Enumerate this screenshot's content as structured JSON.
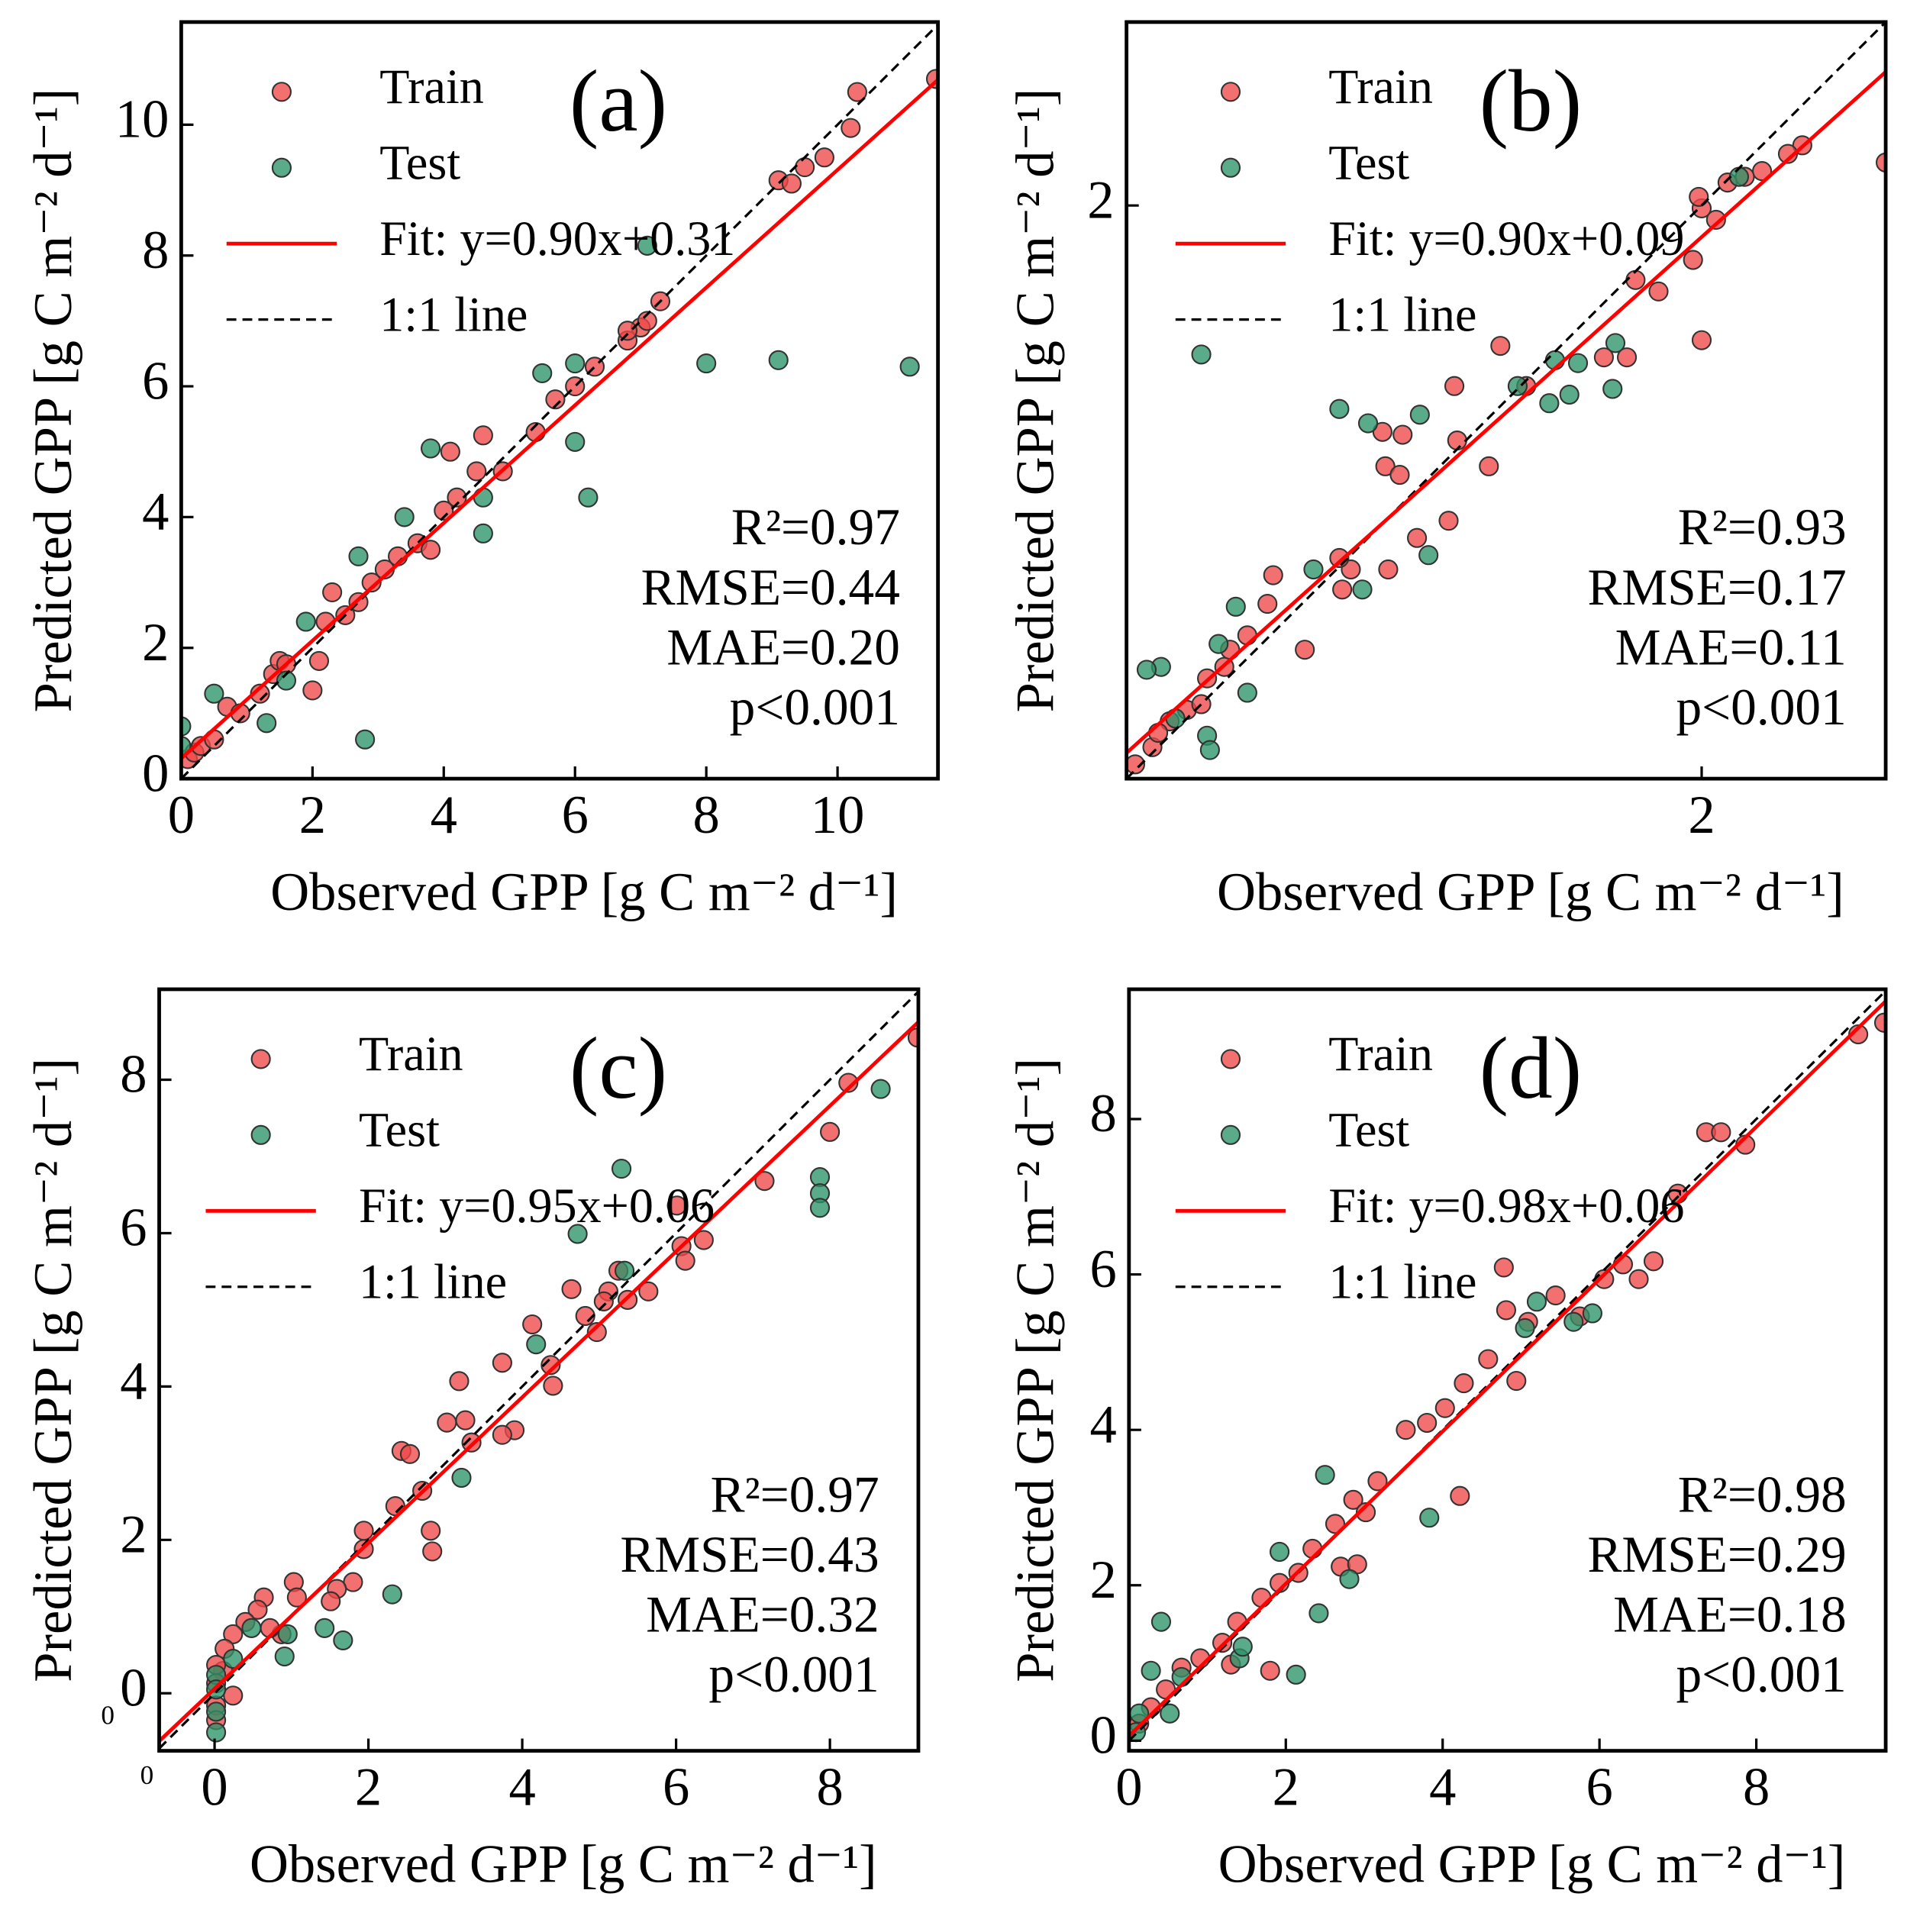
{
  "chart_data": [
    {
      "type": "scatter",
      "panel_label": "(a)",
      "xlabel": "Observed GPP [g C m⁻² d⁻¹]",
      "ylabel": "Predicted GPP [g C m⁻² d⁻¹]",
      "xlim": [
        0,
        11.53
      ],
      "ylim": [
        0,
        11.57
      ],
      "xticks": [
        0,
        2,
        4,
        6,
        8,
        10
      ],
      "yticks": [
        0,
        2,
        4,
        6,
        8,
        10
      ],
      "series": [
        {
          "name": "Train",
          "color": "#f04848",
          "x": [
            0.1,
            0.2,
            0.3,
            0.5,
            0.7,
            0.9,
            1.2,
            1.4,
            1.5,
            1.6,
            2.0,
            2.1,
            2.2,
            2.3,
            2.5,
            2.7,
            2.9,
            3.1,
            3.3,
            3.6,
            3.8,
            4.0,
            4.2,
            4.1,
            4.5,
            4.6,
            4.9,
            5.4,
            5.7,
            6.0,
            6.3,
            6.8,
            7.0,
            7.3,
            7.1,
            6.8,
            9.1,
            9.3,
            9.5,
            9.8,
            10.2,
            10.3,
            11.5
          ],
          "y": [
            0.3,
            0.4,
            0.5,
            0.6,
            1.1,
            1.0,
            1.3,
            1.6,
            1.8,
            1.75,
            1.35,
            1.8,
            2.4,
            2.85,
            2.5,
            2.7,
            3.0,
            3.2,
            3.4,
            3.6,
            3.5,
            4.1,
            4.3,
            5.0,
            4.7,
            5.25,
            4.7,
            5.3,
            5.8,
            6.0,
            6.3,
            6.7,
            6.9,
            7.3,
            7.0,
            6.85,
            9.15,
            9.1,
            9.35,
            9.5,
            9.95,
            10.5,
            10.7
          ]
        },
        {
          "name": "Test",
          "color": "#2a9468",
          "x": [
            8.0,
            9.1,
            11.1,
            6.0,
            5.5,
            6.2,
            6.0,
            2.8,
            3.8,
            4.6,
            3.4,
            1.6,
            0.5,
            0.0,
            2.7,
            4.6,
            1.3,
            0.0,
            7.1,
            1.9
          ],
          "y": [
            6.35,
            6.4,
            6.3,
            6.35,
            6.2,
            4.3,
            5.15,
            0.6,
            5.05,
            3.75,
            4.0,
            1.5,
            1.3,
            0.8,
            3.4,
            4.3,
            0.85,
            0.5,
            8.15,
            2.4
          ]
        }
      ],
      "fit": {
        "name": "Fit: y=0.90x+0.31",
        "slope": 0.9,
        "intercept": 0.31,
        "color": "#ff0000"
      },
      "identity": {
        "name": "1:1 line",
        "slope": 1,
        "intercept": 0,
        "color": "#000000"
      },
      "stats": [
        "R²=0.97",
        "RMSE=0.44",
        "MAE=0.20",
        "p<0.001"
      ]
    },
    {
      "type": "scatter",
      "panel_label": "(b)",
      "xlabel": "Observed GPP [g C m⁻² d⁻¹]",
      "ylabel": "Predicted GPP [g C m⁻² d⁻¹]",
      "xlim": [
        0,
        2.64
      ],
      "ylim": [
        0,
        2.64
      ],
      "xticks": [
        2
      ],
      "yticks": [
        2
      ],
      "series": [
        {
          "name": "Train",
          "color": "#f04848",
          "x": [
            2.0,
            1.99,
            2.64,
            2.35,
            2.3,
            2.21,
            2.15,
            2.09,
            2.05,
            1.97,
            2.0,
            1.85,
            1.77,
            1.66,
            1.74,
            1.3,
            1.14,
            1.15,
            1.26,
            1.39,
            0.89,
            0.96,
            0.9,
            0.95,
            1.01,
            1.12,
            0.91,
            0.78,
            0.74,
            0.75,
            0.51,
            0.49,
            0.62,
            0.42,
            0.34,
            0.28,
            0.21,
            0.15,
            0.09,
            0.03,
            0.26,
            0.36,
            0.11
          ],
          "y": [
            1.99,
            2.03,
            2.15,
            2.21,
            2.18,
            2.12,
            2.1,
            2.08,
            1.95,
            1.81,
            1.53,
            1.7,
            1.74,
            1.47,
            1.47,
            1.51,
            1.37,
            1.18,
            1.09,
            1.37,
            1.21,
            1.2,
            1.09,
            1.06,
            0.84,
            0.9,
            0.73,
            0.73,
            0.77,
            0.66,
            0.71,
            0.61,
            0.45,
            0.5,
            0.39,
            0.35,
            0.24,
            0.2,
            0.11,
            0.05,
            0.26,
            0.45,
            0.16
          ]
        },
        {
          "name": "Test",
          "color": "#2a9468",
          "x": [
            0.26,
            0.74,
            0.84,
            1.02,
            1.05,
            0.82,
            0.65,
            0.38,
            0.32,
            0.12,
            0.07,
            0.42,
            0.28,
            0.29,
            0.17,
            1.49,
            1.47,
            1.54,
            1.57,
            1.69,
            1.7,
            2.13,
            1.36
          ],
          "y": [
            1.48,
            1.29,
            1.24,
            1.27,
            0.78,
            0.66,
            0.73,
            0.6,
            0.47,
            0.39,
            0.38,
            0.3,
            0.15,
            0.1,
            0.21,
            1.46,
            1.31,
            1.34,
            1.45,
            1.36,
            1.52,
            2.1,
            1.37
          ]
        }
      ],
      "fit": {
        "name": "Fit: y=0.90x+0.09",
        "slope": 0.9,
        "intercept": 0.09,
        "color": "#ff0000"
      },
      "identity": {
        "name": "1:1 line",
        "slope": 1,
        "intercept": 0,
        "color": "#000000"
      },
      "stats": [
        "R²=0.93",
        "RMSE=0.17",
        "MAE=0.11",
        "p<0.001"
      ]
    },
    {
      "type": "scatter",
      "panel_label": "(c)",
      "xlabel": "Observed GPP [g C m⁻² d⁻¹]",
      "ylabel": "Predicted GPP [g C m⁻² d⁻¹]",
      "xlim": [
        -0.72,
        9.15
      ],
      "ylim": [
        -0.75,
        9.18
      ],
      "xticks": [
        0,
        2,
        4,
        6,
        8
      ],
      "yticks": [
        0,
        2,
        4,
        6,
        8
      ],
      "corner_labels": [
        "0",
        "0"
      ],
      "series": [
        {
          "name": "Train",
          "color": "#f04848",
          "x": [
            9.14,
            8.24,
            7.15,
            8.0,
            6.01,
            6.07,
            6.36,
            6.12,
            5.64,
            5.25,
            5.12,
            5.06,
            5.37,
            4.64,
            4.82,
            4.97,
            4.13,
            4.37,
            4.4,
            3.74,
            3.9,
            3.74,
            3.18,
            3.02,
            3.26,
            3.34,
            2.43,
            2.54,
            2.7,
            2.35,
            2.81,
            2.83,
            1.94,
            1.94,
            1.8,
            1.59,
            1.51,
            1.03,
            1.07,
            0.64,
            0.56,
            0.4,
            0.24,
            0.13,
            0.24,
            0.11,
            0.02,
            0.02,
            0.02,
            0.02,
            0.87,
            0.72
          ],
          "y": [
            8.55,
            7.96,
            6.68,
            7.32,
            6.36,
            5.83,
            5.91,
            5.64,
            5.24,
            5.51,
            5.24,
            5.11,
            5.13,
            5.27,
            4.92,
            4.71,
            4.81,
            4.28,
            4.01,
            4.31,
            3.43,
            3.37,
            4.07,
            3.53,
            3.56,
            3.27,
            3.16,
            3.12,
            2.64,
            2.44,
            2.12,
            1.85,
            2.12,
            1.88,
            1.45,
            1.36,
            1.2,
            1.45,
            1.25,
            1.25,
            1.09,
            0.93,
            0.77,
            0.58,
            -0.03,
            0.29,
            0.37,
            0.13,
            -0.16,
            -0.35,
            0.77,
            0.85
          ]
        },
        {
          "name": "Test",
          "color": "#2a9468",
          "x": [
            8.66,
            7.87,
            7.87,
            7.87,
            5.29,
            4.72,
            5.33,
            4.18,
            3.21,
            2.31,
            1.67,
            1.43,
            0.95,
            0.48,
            0.24,
            0.02,
            0.02,
            0.02,
            0.02,
            0.91
          ],
          "y": [
            7.88,
            6.73,
            6.52,
            6.33,
            6.84,
            5.99,
            5.51,
            4.55,
            2.81,
            1.29,
            0.69,
            0.85,
            0.77,
            0.85,
            0.45,
            0.24,
            0.05,
            -0.24,
            -0.51,
            0.48
          ]
        }
      ],
      "fit": {
        "name": "Fit: y=0.95x+0.06",
        "slope": 0.95,
        "intercept": 0.06,
        "color": "#ff0000"
      },
      "identity": {
        "name": "1:1 line",
        "slope": 1,
        "intercept": 0,
        "color": "#000000"
      },
      "stats": [
        "R²=0.97",
        "RMSE=0.43",
        "MAE=0.32",
        "p<0.001"
      ]
    },
    {
      "type": "scatter",
      "panel_label": "(d)",
      "xlabel": "Observed GPP [g C m⁻² d⁻¹]",
      "ylabel": "Predicted GPP [g C m⁻² d⁻¹]",
      "xlim": [
        0,
        9.65
      ],
      "ylim": [
        -0.13,
        9.67
      ],
      "xticks": [
        0,
        2,
        4,
        6,
        8
      ],
      "yticks": [
        0,
        2,
        4,
        6,
        8
      ],
      "series": [
        {
          "name": "Train",
          "color": "#f04848",
          "x": [
            9.63,
            9.3,
            7.86,
            7.36,
            7.55,
            7.0,
            6.69,
            6.3,
            6.5,
            6.06,
            5.75,
            5.44,
            5.09,
            4.81,
            4.78,
            4.94,
            4.58,
            4.27,
            4.03,
            3.8,
            3.53,
            4.22,
            3.17,
            2.86,
            3.02,
            2.63,
            2.34,
            2.16,
            1.92,
            1.69,
            1.38,
            1.19,
            0.91,
            0.67,
            0.47,
            0.28,
            0.13,
            1.8,
            1.3,
            2.7,
            2.91
          ],
          "y": [
            9.24,
            9.09,
            7.67,
            7.83,
            7.83,
            7.04,
            6.17,
            6.13,
            5.94,
            5.94,
            5.46,
            5.73,
            5.39,
            5.54,
            6.09,
            4.63,
            4.91,
            4.6,
            4.28,
            4.09,
            4.0,
            3.15,
            3.34,
            3.1,
            2.94,
            2.79,
            2.47,
            2.16,
            2.03,
            1.84,
            1.53,
            1.26,
            1.06,
            0.94,
            0.66,
            0.43,
            0.22,
            0.9,
            0.98,
            2.24,
            2.27
          ]
        },
        {
          "name": "Test",
          "color": "#2a9468",
          "x": [
            2.5,
            2.42,
            2.13,
            3.83,
            2.81,
            1.92,
            5.2,
            5.67,
            5.91,
            5.05,
            0.41,
            0.28,
            0.52,
            0.09,
            0.13,
            1.41,
            1.45,
            0.67
          ],
          "y": [
            3.42,
            1.64,
            0.85,
            2.87,
            2.08,
            2.43,
            5.65,
            5.39,
            5.5,
            5.31,
            1.53,
            0.9,
            0.35,
            0.11,
            0.35,
            1.06,
            1.21,
            0.82
          ]
        }
      ],
      "fit": {
        "name": "Fit: y=0.98x+0.06",
        "slope": 0.98,
        "intercept": 0.06,
        "color": "#ff0000"
      },
      "identity": {
        "name": "1:1 line",
        "slope": 1,
        "intercept": 0,
        "color": "#000000"
      },
      "stats": [
        "R²=0.98",
        "RMSE=0.29",
        "MAE=0.18",
        "p<0.001"
      ]
    }
  ]
}
